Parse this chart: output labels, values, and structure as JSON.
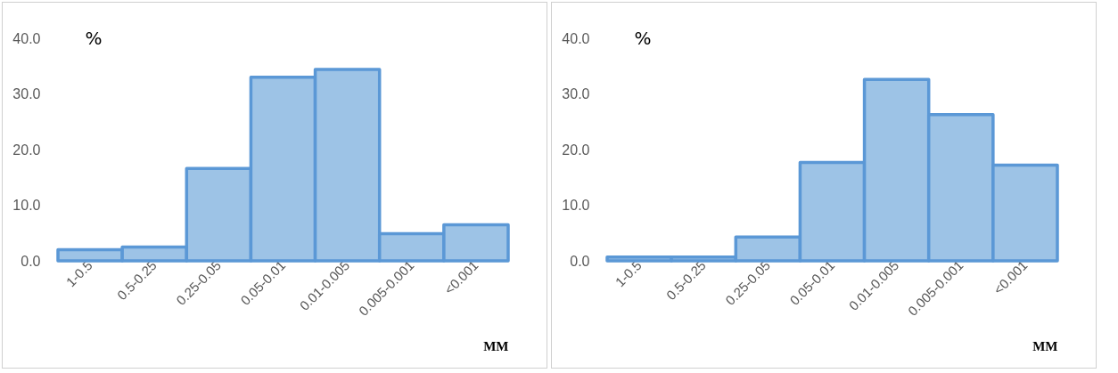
{
  "chart_data": [
    {
      "type": "bar",
      "xlabel": "MM",
      "ylabel": "%",
      "categories": [
        "1-0.5",
        "0.5-0.25",
        "0.25-0.05",
        "0.05-0.01",
        "0.01-0.005",
        "0.005-0.001",
        "<0.001"
      ],
      "series": [
        {
          "color": "#9dc3e6",
          "values": [
            2.0,
            2.5,
            16.6,
            33.0,
            34.4,
            4.9,
            6.5
          ]
        }
      ],
      "ylim": [
        0,
        40
      ],
      "yticks": [
        {
          "value": 0,
          "label": "0.0"
        },
        {
          "value": 10,
          "label": "10.0"
        },
        {
          "value": 20,
          "label": "20.0"
        },
        {
          "value": 30,
          "label": "30.0"
        },
        {
          "value": 40,
          "label": "40.0"
        }
      ],
      "grid": false,
      "legend": false
    },
    {
      "type": "bar",
      "xlabel": "MM",
      "ylabel": "%",
      "categories": [
        "1-0.5",
        "0.5-0.25",
        "0.25-0.05",
        "0.05-0.01",
        "0.01-0.005",
        "0.005-0.001",
        "<0.001"
      ],
      "series": [
        {
          "color": "#9dc3e6",
          "values": [
            0.7,
            0.7,
            4.3,
            17.7,
            32.6,
            26.3,
            17.2
          ]
        }
      ],
      "ylim": [
        0,
        40
      ],
      "yticks": [
        {
          "value": 0,
          "label": "0.0"
        },
        {
          "value": 10,
          "label": "10.0"
        },
        {
          "value": 20,
          "label": "20.0"
        },
        {
          "value": 30,
          "label": "30.0"
        },
        {
          "value": 40,
          "label": "40.0"
        }
      ],
      "grid": false,
      "legend": false
    }
  ]
}
